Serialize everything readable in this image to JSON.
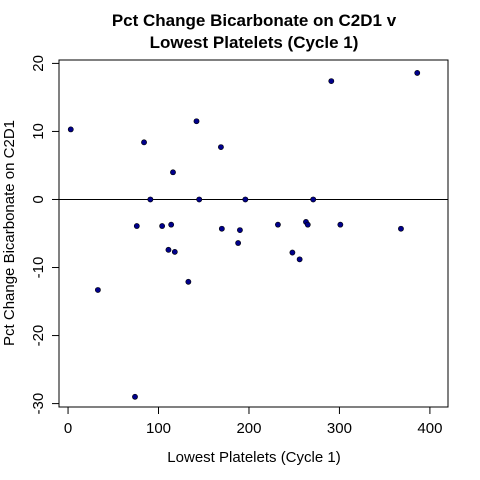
{
  "chart_data": {
    "type": "scatter",
    "title_line1": "Pct Change Bicarbonate on C2D1 v",
    "title_line2": "Lowest Platelets (Cycle 1)",
    "xlabel": "Lowest Platelets (Cycle 1)",
    "ylabel": "Pct Change Bicarbonate on C2D1",
    "xlim": [
      -10,
      420
    ],
    "ylim": [
      -30.5,
      20.5
    ],
    "x_ticks": [
      0,
      100,
      200,
      300,
      400
    ],
    "x_tick_labels": [
      "0",
      "100",
      "200",
      "300",
      "400"
    ],
    "y_ticks": [
      -30,
      -20,
      -10,
      0,
      10,
      20
    ],
    "y_tick_labels": [
      "-30",
      "-20",
      "-10",
      "0",
      "10",
      "20"
    ],
    "reference_line_y": 0,
    "point_color": "#00008B",
    "points": [
      {
        "x": 3,
        "y": 10.3
      },
      {
        "x": 33,
        "y": -13.3
      },
      {
        "x": 74,
        "y": -29.0
      },
      {
        "x": 76,
        "y": -3.9
      },
      {
        "x": 84,
        "y": 8.4
      },
      {
        "x": 91,
        "y": 0.0
      },
      {
        "x": 104,
        "y": -3.9
      },
      {
        "x": 111,
        "y": -7.4
      },
      {
        "x": 114,
        "y": -3.7
      },
      {
        "x": 116,
        "y": 4.0
      },
      {
        "x": 118,
        "y": -7.7
      },
      {
        "x": 133,
        "y": -12.1
      },
      {
        "x": 142,
        "y": 11.5
      },
      {
        "x": 145,
        "y": 0.0
      },
      {
        "x": 169,
        "y": 7.7
      },
      {
        "x": 170,
        "y": -4.3
      },
      {
        "x": 188,
        "y": -6.4
      },
      {
        "x": 190,
        "y": -4.5
      },
      {
        "x": 196,
        "y": 0.0
      },
      {
        "x": 232,
        "y": -3.7
      },
      {
        "x": 248,
        "y": -7.8
      },
      {
        "x": 256,
        "y": -8.8
      },
      {
        "x": 263,
        "y": -3.3
      },
      {
        "x": 265,
        "y": -3.7
      },
      {
        "x": 271,
        "y": 0.0
      },
      {
        "x": 291,
        "y": 17.4
      },
      {
        "x": 301,
        "y": -3.7
      },
      {
        "x": 368,
        "y": -4.3
      },
      {
        "x": 386,
        "y": 18.6
      }
    ]
  }
}
